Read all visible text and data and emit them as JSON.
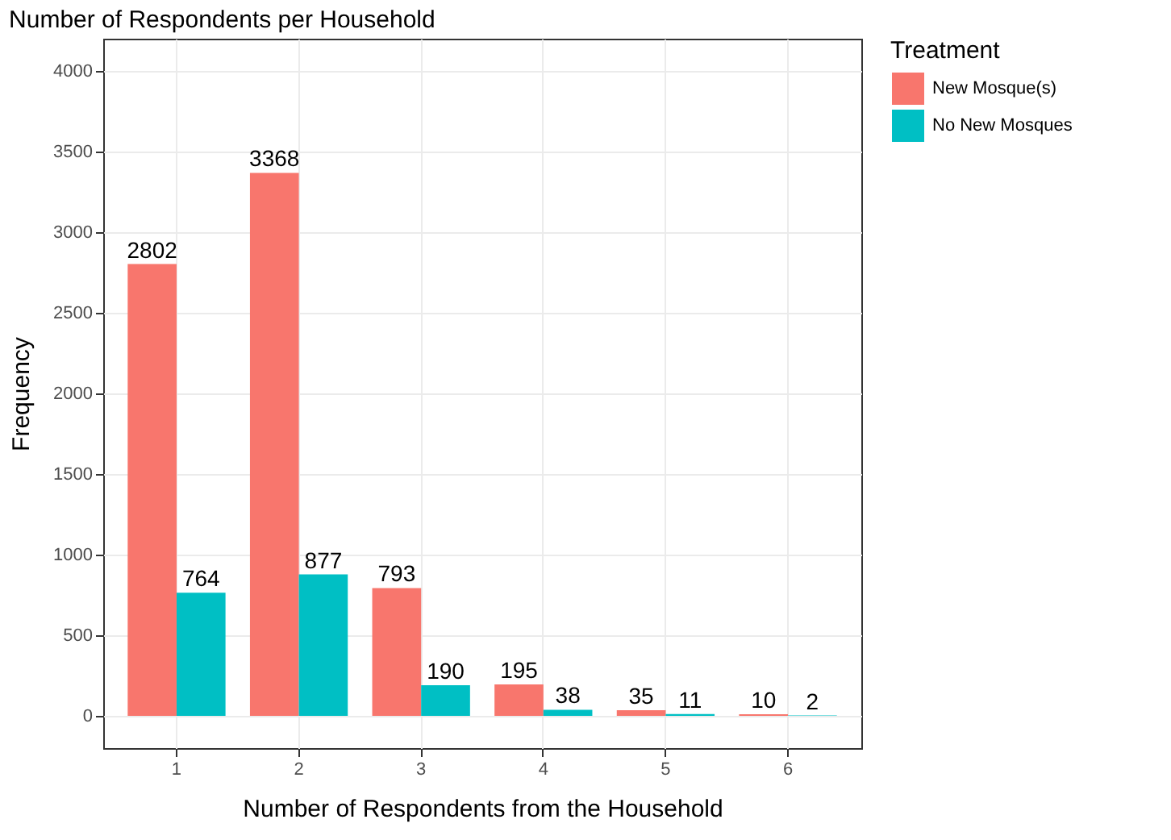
{
  "chart_data": {
    "type": "bar",
    "title": "Number of Respondents per Household",
    "xlabel": "Number of Respondents from the Household",
    "ylabel": "Frequency",
    "legend_title": "Treatment",
    "categories": [
      "1",
      "2",
      "3",
      "4",
      "5",
      "6"
    ],
    "series": [
      {
        "name": "New Mosque(s)",
        "color": "#f8766d",
        "values": [
          2802,
          3368,
          793,
          195,
          35,
          10
        ]
      },
      {
        "name": "No New Mosques",
        "color": "#00bfc4",
        "values": [
          764,
          877,
          190,
          38,
          11,
          2
        ]
      }
    ],
    "ylim": [
      -200,
      4200
    ],
    "yticks": [
      0,
      500,
      1000,
      1500,
      2000,
      2500,
      3000,
      3500,
      4000
    ],
    "grid": true,
    "legend": "right",
    "data_labels": true
  }
}
